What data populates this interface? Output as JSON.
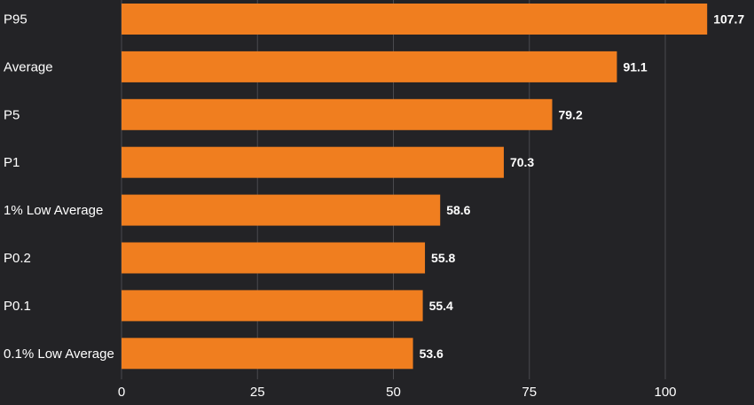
{
  "chart_data": {
    "type": "bar",
    "orientation": "horizontal",
    "categories": [
      "P95",
      "Average",
      "P5",
      "P1",
      "1% Low Average",
      "P0.2",
      "P0.1",
      "0.1% Low Average"
    ],
    "values": [
      107.7,
      91.1,
      79.2,
      70.3,
      58.6,
      55.8,
      55.4,
      53.6
    ],
    "value_labels": [
      "107.7",
      "91.1",
      "79.2",
      "70.3",
      "58.6",
      "55.8",
      "55.4",
      "53.6"
    ],
    "x_ticks": [
      0,
      25,
      50,
      75,
      100
    ],
    "x_tick_labels": [
      "0",
      "25",
      "50",
      "75",
      "100"
    ],
    "xlim": [
      0,
      115
    ],
    "title": "",
    "xlabel": "",
    "ylabel": "",
    "grid": true,
    "legend": "none",
    "bar_color": "#f07e1f",
    "background_color": "#232326",
    "text_color": "#ffffff",
    "grid_color": "#4a4a4e"
  }
}
